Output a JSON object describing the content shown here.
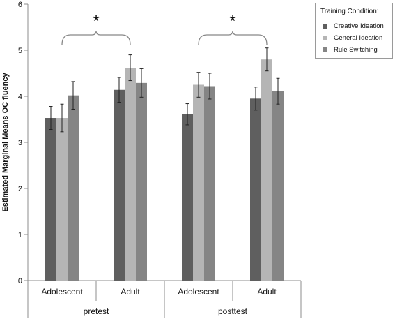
{
  "chart_data": {
    "type": "bar",
    "ylabel": "Estimated Marginal Means OC fluency",
    "ylim": [
      0,
      6
    ],
    "yticks": [
      "0",
      "1",
      "2",
      "3",
      "4",
      "5",
      "6"
    ],
    "groups": [
      "pretest",
      "posttest"
    ],
    "categories": [
      "Adolescent",
      "Adult",
      "Adolescent",
      "Adult"
    ],
    "legend_title": "Training Condition:",
    "legend_position": "top-right",
    "grid": false,
    "series": [
      {
        "name": "Creative Ideation",
        "color": "#5f5f5f",
        "values": [
          3.53,
          4.14,
          3.61,
          3.95
        ],
        "errors": [
          0.25,
          0.27,
          0.23,
          0.25
        ]
      },
      {
        "name": "General Ideation",
        "color": "#b5b5b5",
        "values": [
          3.53,
          4.62,
          4.25,
          4.8
        ],
        "errors": [
          0.3,
          0.28,
          0.27,
          0.25
        ]
      },
      {
        "name": "Rule Switching",
        "color": "#858585",
        "values": [
          4.02,
          4.29,
          4.22,
          4.11
        ],
        "errors": [
          0.3,
          0.31,
          0.28,
          0.28
        ]
      }
    ],
    "annotations": [
      "*",
      "*"
    ]
  }
}
